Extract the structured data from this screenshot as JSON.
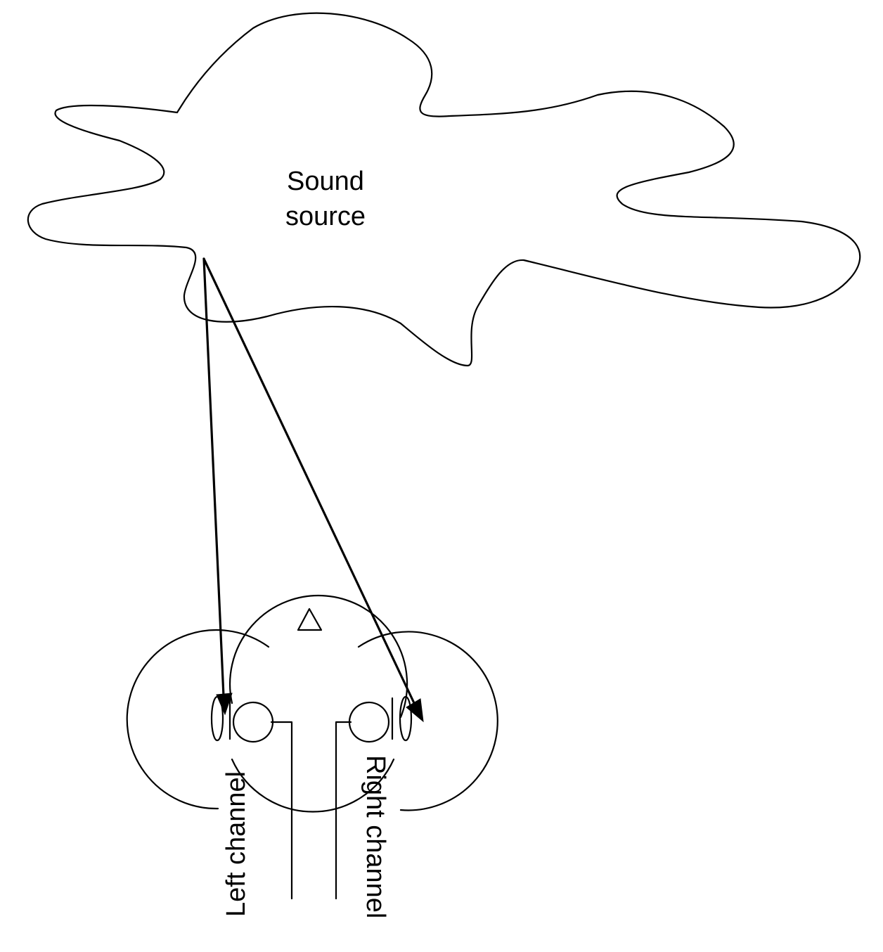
{
  "diagram": {
    "source_label_line1": "Sound",
    "source_label_line2": "source",
    "left_channel_label": "Left channel",
    "right_channel_label": "Right channel"
  },
  "colors": {
    "stroke": "#000000",
    "background": "#ffffff"
  }
}
